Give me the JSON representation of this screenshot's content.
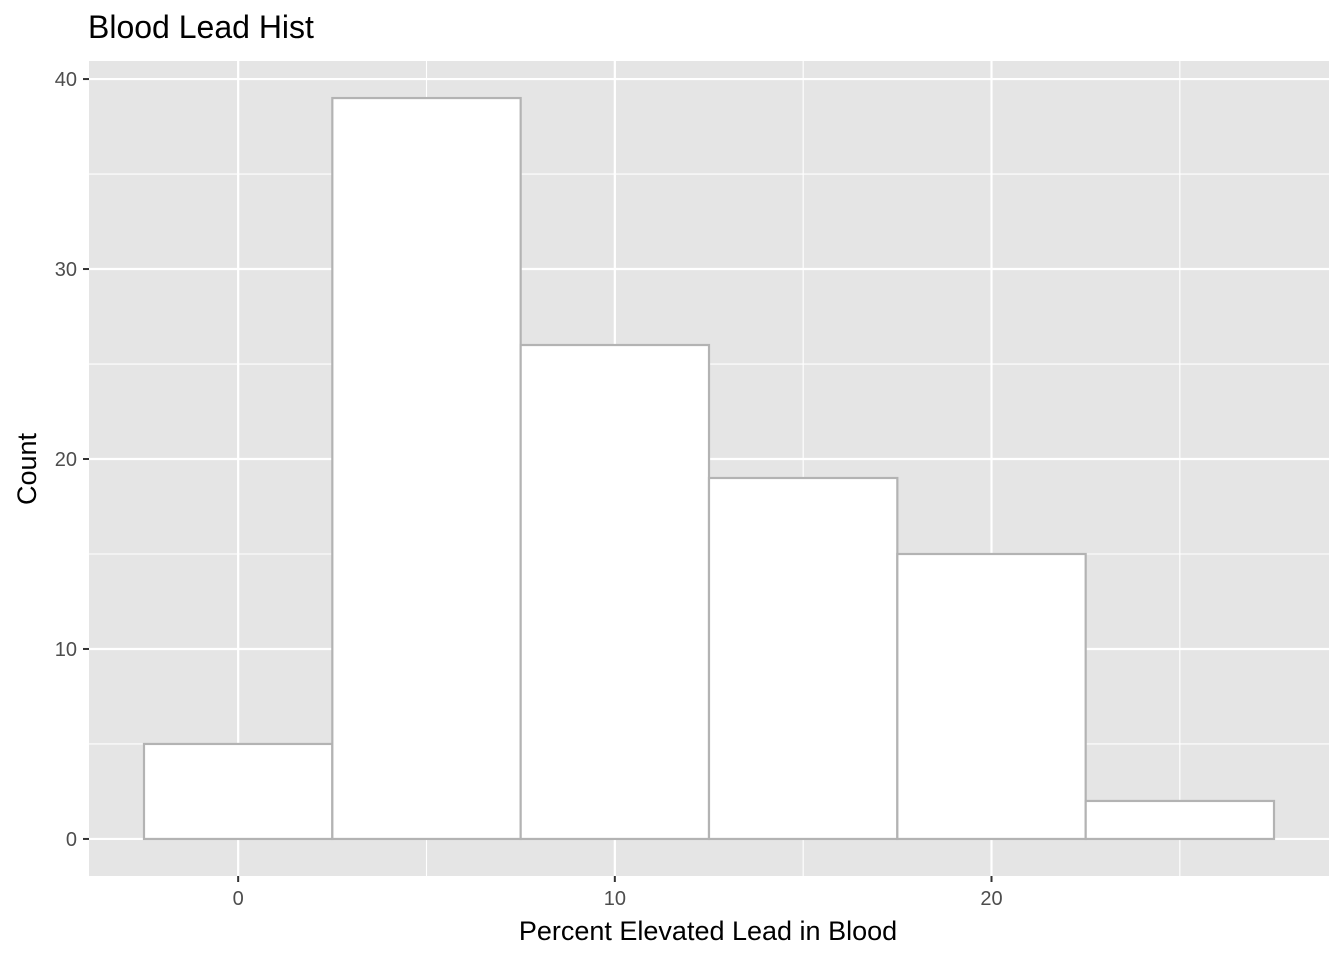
{
  "chart_data": {
    "type": "bar",
    "title": "Blood Lead Hist",
    "xlabel": "Percent Elevated Lead in Blood",
    "ylabel": "Count",
    "bin_width": 5,
    "bins": [
      {
        "center": 0,
        "count": 5
      },
      {
        "center": 5,
        "count": 39
      },
      {
        "center": 10,
        "count": 26
      },
      {
        "center": 15,
        "count": 19
      },
      {
        "center": 20,
        "count": 15
      },
      {
        "center": 25,
        "count": 2
      }
    ],
    "xlim": [
      -3.96,
      28.96
    ],
    "ylim": [
      -1.95,
      40.95
    ],
    "x_ticks": [
      0,
      10,
      20
    ],
    "y_ticks": [
      0,
      10,
      20,
      30,
      40
    ],
    "x_minor_ticks": [
      -5,
      5,
      15,
      25
    ],
    "y_minor_ticks": [
      5,
      15,
      25,
      35
    ],
    "grid": true,
    "legend": "none",
    "colors": {
      "panel_background": "#e5e5e5",
      "grid": "#ffffff",
      "bar_fill": "#ffffff",
      "bar_outline": "#b3b3b3",
      "tick_label": "#4d4d4d",
      "tick_mark": "#333333"
    }
  }
}
